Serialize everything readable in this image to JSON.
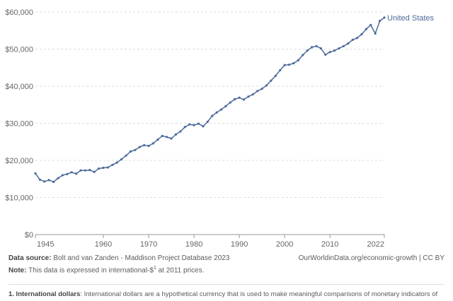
{
  "chart_data": {
    "type": "line",
    "title": "",
    "xlabel": "",
    "ylabel": "",
    "xlim": [
      1945,
      2022
    ],
    "ylim": [
      0,
      60000
    ],
    "y_ticks": [
      "$0",
      "$10,000",
      "$20,000",
      "$30,000",
      "$40,000",
      "$50,000",
      "$60,000"
    ],
    "y_tick_values": [
      0,
      10000,
      20000,
      30000,
      40000,
      50000,
      60000
    ],
    "x_ticks": [
      "1945",
      "1960",
      "1970",
      "1980",
      "1990",
      "2000",
      "2010",
      "2022"
    ],
    "x_tick_values": [
      1945,
      1960,
      1970,
      1980,
      1990,
      2000,
      2010,
      2022
    ],
    "grid": "horizontal dashed",
    "legend_placement": "end-of-line label",
    "series": [
      {
        "name": "United States",
        "color": "#4c6a9c",
        "x": [
          1945,
          1946,
          1947,
          1948,
          1949,
          1950,
          1951,
          1952,
          1953,
          1954,
          1955,
          1956,
          1957,
          1958,
          1959,
          1960,
          1961,
          1962,
          1963,
          1964,
          1965,
          1966,
          1967,
          1968,
          1969,
          1970,
          1971,
          1972,
          1973,
          1974,
          1975,
          1976,
          1977,
          1978,
          1979,
          1980,
          1981,
          1982,
          1983,
          1984,
          1985,
          1986,
          1987,
          1988,
          1989,
          1990,
          1991,
          1992,
          1993,
          1994,
          1995,
          1996,
          1997,
          1998,
          1999,
          2000,
          2001,
          2002,
          2003,
          2004,
          2005,
          2006,
          2007,
          2008,
          2009,
          2010,
          2011,
          2012,
          2013,
          2014,
          2015,
          2016,
          2017,
          2018,
          2019,
          2020,
          2021,
          2022
        ],
        "values": [
          16500,
          14800,
          14300,
          14700,
          14200,
          15200,
          16000,
          16300,
          16800,
          16400,
          17300,
          17300,
          17400,
          16900,
          17800,
          18000,
          18100,
          18800,
          19400,
          20300,
          21300,
          22400,
          22800,
          23600,
          24100,
          23900,
          24600,
          25600,
          26600,
          26300,
          25900,
          27000,
          27800,
          29000,
          29700,
          29500,
          29900,
          29200,
          30400,
          32000,
          32900,
          33700,
          34600,
          35600,
          36500,
          36900,
          36400,
          37200,
          37800,
          38700,
          39300,
          40200,
          41500,
          42800,
          44300,
          45700,
          45800,
          46200,
          47000,
          48400,
          49600,
          50500,
          50800,
          50200,
          48500,
          49200,
          49600,
          50200,
          50800,
          51500,
          52500,
          53000,
          54000,
          55400,
          56500,
          54200,
          57600,
          58500
        ]
      }
    ]
  },
  "source": {
    "label": "Data source:",
    "text": "Bolt and van Zanden - Maddison Project Database 2023",
    "url": "OurWorldinData.org/economic-growth | CC BY"
  },
  "note": {
    "label": "Note:",
    "text_before": "This data is expressed in international-$",
    "superscript": "1",
    "text_after": " at 2011 prices."
  },
  "footnote": {
    "label": "1. International dollars",
    "text": ": International dollars are a hypothetical currency that is used to make meaningful comparisons of monetary indicators of"
  }
}
